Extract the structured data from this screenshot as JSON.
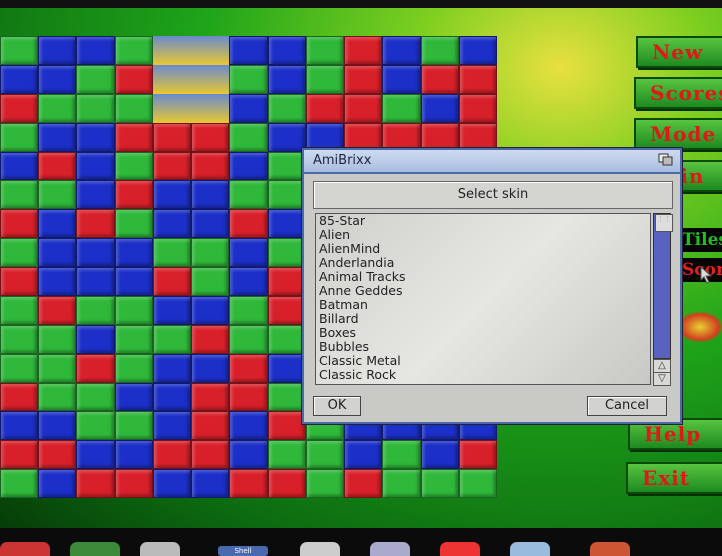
{
  "game": {
    "grid_rows": [
      "GBBGYYBBGRBGB",
      "BBGRYYGBGRBRR",
      "RGGGYYBGRRGBR",
      "GBBRRRGBBRRRR",
      "BRBGRRBGRRRBR",
      "GGBRBBGGRBGBB",
      "RBRGBBRBBRGBB",
      "GBBBGGBGBRGBB",
      "RBBBRGBRRRRBR",
      "GRGGBBGRBRRBR",
      "GGBGGRGGBRRRB",
      "GGRGBBRBBBBRB",
      "RGGBBRRGBRGGR",
      "BBGGBRBRGBBBB",
      "RRBBRRBGGBGBR",
      "GBRRBBRRGRGGG"
    ],
    "cell_colors": {
      "R": "#d8202a",
      "G": "#2fb83a",
      "B": "#1c2fc8"
    }
  },
  "menu": {
    "new": "New",
    "scores": "Scores",
    "mode": "Mode",
    "skin": "Skin",
    "tiles_label": "Tiles",
    "score_label": "Score",
    "help": "Help",
    "exit": "Exit"
  },
  "dialog": {
    "title": "AmiBrixx",
    "header": "Select skin",
    "items": [
      "85-Star",
      "Alien",
      "AlienMind",
      "Anderlandia",
      "Animal Tracks",
      "Anne Geddes",
      "Batman",
      "Billard",
      "Boxes",
      "Bubbles",
      "Classic Metal",
      "Classic Rock"
    ],
    "ok": "OK",
    "cancel": "Cancel"
  },
  "taskbar": {
    "shell": "Shell"
  }
}
